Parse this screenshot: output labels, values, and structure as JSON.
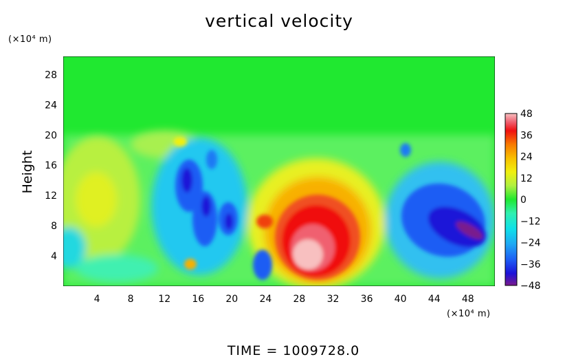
{
  "chart_data": {
    "type": "heatmap",
    "title": "vertical velocity",
    "ylabel": "Height",
    "x_unit_label": "(×10⁴ m)",
    "y_unit_label": "(×10⁴ m)",
    "xlim": [
      0,
      51.2
    ],
    "ylim": [
      0,
      30.4
    ],
    "x_ticks": [
      "4",
      "8",
      "12",
      "16",
      "20",
      "24",
      "28",
      "32",
      "36",
      "40",
      "44",
      "48"
    ],
    "y_ticks": [
      "4",
      "8",
      "12",
      "16",
      "20",
      "24",
      "28"
    ],
    "colorbar": {
      "range": [
        -48,
        48
      ],
      "ticks": [
        "48",
        "36",
        "24",
        "12",
        "0",
        "−12",
        "−24",
        "−36",
        "−48"
      ],
      "colors": [
        "#7a1a8c",
        "#1c12d8",
        "#1d5df4",
        "#1ea8f4",
        "#10e0e8",
        "#30f0b0",
        "#20e830",
        "#b0f040",
        "#f0f010",
        "#f8c000",
        "#f87a00",
        "#f01010",
        "#f06070",
        "#f8c0c0"
      ]
    },
    "features": [
      {
        "x": 30,
        "y": 5,
        "w": 34,
        "type": "updraft-max"
      },
      {
        "x": 47,
        "y": 7,
        "w": -44,
        "type": "downdraft-max"
      },
      {
        "x": 15,
        "y": 13,
        "w": -38,
        "type": "downdraft"
      },
      {
        "x": 18,
        "y": 8,
        "w": -36,
        "type": "downdraft"
      },
      {
        "x": 4,
        "y": 11,
        "w": 14,
        "type": "updraft"
      }
    ],
    "grid": false,
    "legend": "colorbar-right"
  },
  "footer": {
    "time_label": "TIME  =  1009728.0"
  }
}
